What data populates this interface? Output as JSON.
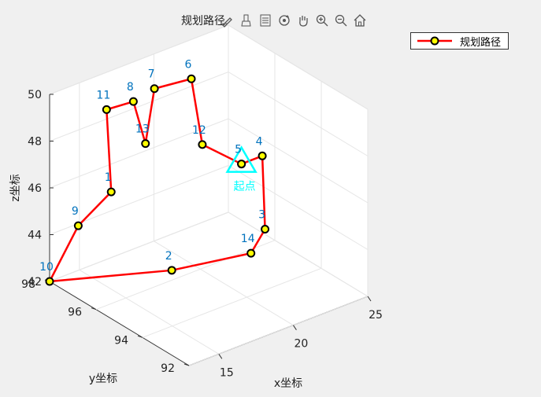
{
  "toolbar": {
    "icons": [
      "export-brush-icon",
      "data-brush-icon",
      "legend-icon",
      "rotate-icon",
      "pan-hand-icon",
      "zoom-in-icon",
      "zoom-out-icon",
      "home-icon"
    ]
  },
  "chart_data": {
    "type": "line3d",
    "title": "规划路径",
    "xlabel": "x坐标",
    "ylabel": "y坐标",
    "zlabel": "z坐标",
    "xlim": [
      13,
      25
    ],
    "ylim": [
      92,
      98
    ],
    "zlim": [
      42,
      50
    ],
    "xticks": [
      "15",
      "20",
      "25"
    ],
    "yticks": [
      "92",
      "94",
      "96",
      "98"
    ],
    "zticks": [
      "42",
      "44",
      "46",
      "48",
      "50"
    ],
    "grid": true,
    "legend": {
      "entries": [
        "规划路径"
      ],
      "placement": "top-right"
    },
    "series": [
      {
        "name": "规划路径",
        "color": "#ff0000",
        "marker_face": "#ffff00",
        "marker_edge": "#000000",
        "points": [
          {
            "label": "5",
            "x": 21.2,
            "y": 95.0,
            "z": 46.8
          },
          {
            "label": "4",
            "x": 22.6,
            "y": 95.0,
            "z": 46.8
          },
          {
            "label": "3",
            "x": 20.6,
            "y": 93.6,
            "z": 45.0
          },
          {
            "label": "14",
            "x": 19.5,
            "y": 93.5,
            "z": 44.3
          },
          {
            "label": "2",
            "x": 15.9,
            "y": 94.6,
            "z": 43.8
          },
          {
            "label": "10",
            "x": 13.0,
            "y": 98.0,
            "z": 42.0
          },
          {
            "label": "9",
            "x": 14.3,
            "y": 97.6,
            "z": 44.3
          },
          {
            "label": "1",
            "x": 16.2,
            "y": 97.4,
            "z": 45.4
          },
          {
            "label": "11",
            "x": 16.2,
            "y": 97.6,
            "z": 48.8
          },
          {
            "label": "8",
            "x": 18.0,
            "y": 97.6,
            "z": 48.7
          },
          {
            "label": "13",
            "x": 18.5,
            "y": 97.4,
            "z": 46.9
          },
          {
            "label": "7",
            "x": 19.1,
            "y": 97.4,
            "z": 49.1
          },
          {
            "label": "6",
            "x": 20.8,
            "y": 96.9,
            "z": 49.4
          },
          {
            "label": "12",
            "x": 20.6,
            "y": 96.3,
            "z": 47.0
          },
          {
            "label": "5",
            "x": 21.2,
            "y": 95.0,
            "z": 46.8
          }
        ]
      }
    ],
    "start_marker": {
      "label": "起点",
      "color": "#00ffff",
      "x": 21.2,
      "y": 95.0,
      "z": 46.8
    },
    "point_label_color": "#0072bd"
  }
}
